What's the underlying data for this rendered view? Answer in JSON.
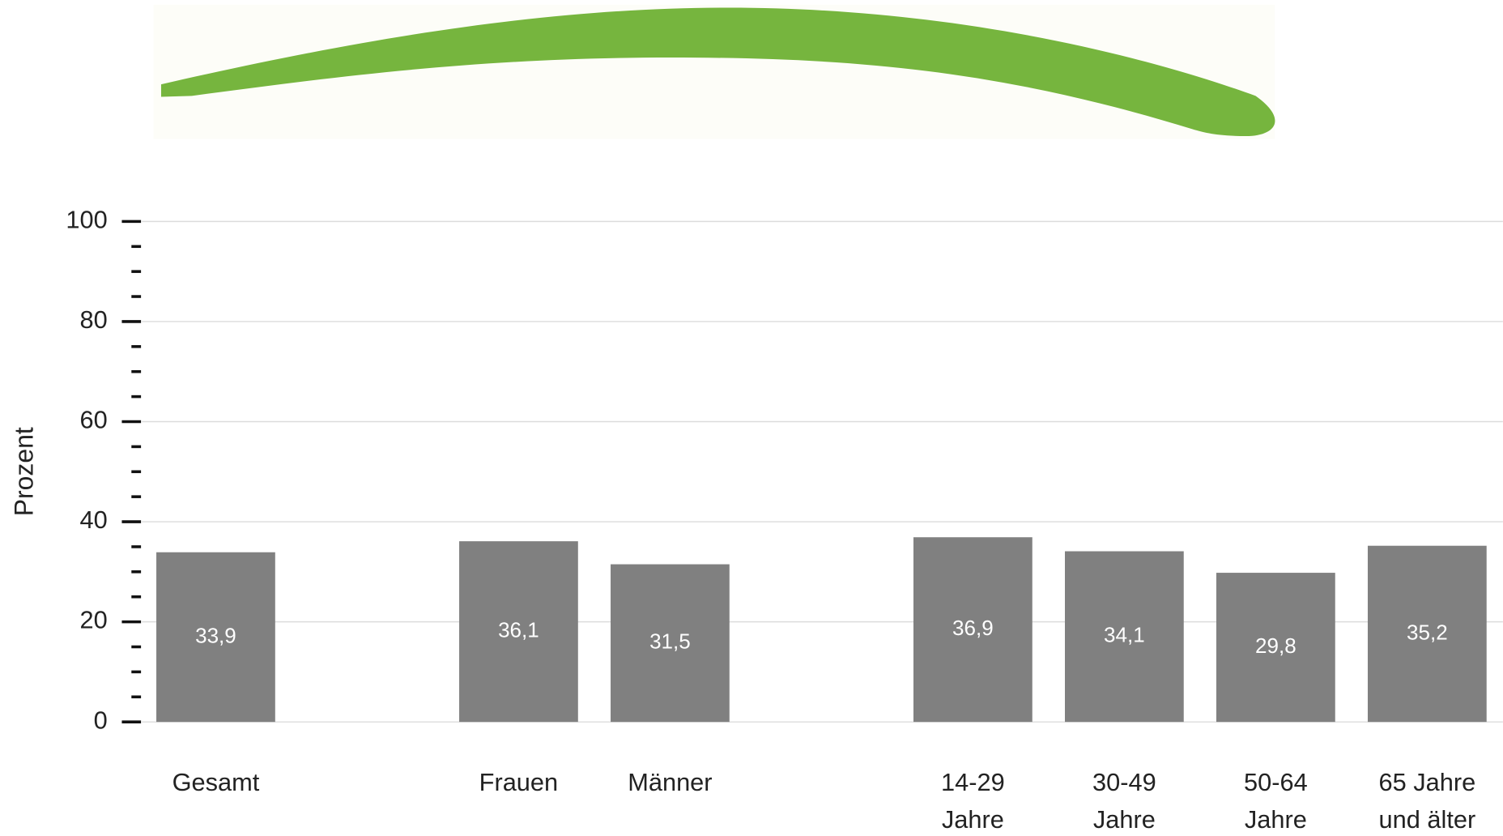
{
  "chart_data": {
    "type": "bar",
    "y_label": "Prozent",
    "categories": [
      "Gesamt",
      null,
      "Frauen",
      "Männer",
      null,
      "14-29\nJahre",
      "30-49\nJahre",
      "50-64\nJahre",
      "65 Jahre\nund älter"
    ],
    "values": [
      33.9,
      null,
      36.1,
      31.5,
      null,
      36.9,
      34.1,
      29.8,
      35.2
    ],
    "value_labels": [
      "33,9",
      null,
      "36,1",
      "31,5",
      null,
      "36,9",
      "34,1",
      "29,8",
      "35,2"
    ],
    "color": "#808080",
    "ylim": [
      0,
      100
    ],
    "yticks": [
      0,
      20,
      40,
      60,
      80,
      100
    ],
    "yminorticks": [
      5,
      10,
      15,
      25,
      30,
      35,
      45,
      50,
      55,
      65,
      70,
      75,
      85,
      90,
      95
    ],
    "grid": true
  }
}
